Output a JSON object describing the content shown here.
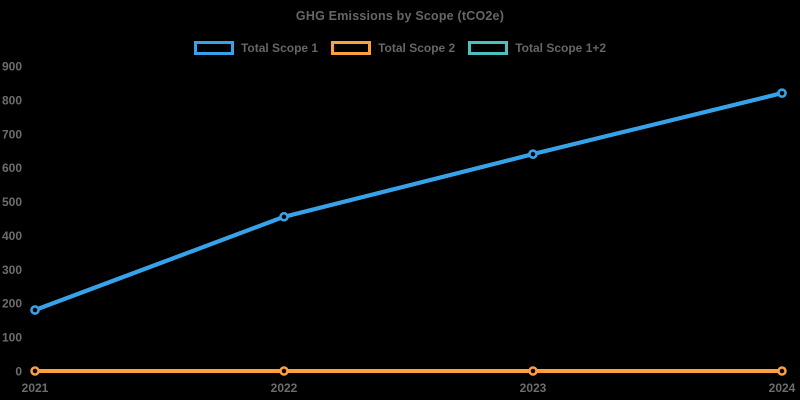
{
  "chart": {
    "title": "GHG Emissions by Scope (tCO2e)",
    "background_color": "#000000",
    "text_color": "#666666",
    "legend": [
      {
        "label": "Total Scope 1",
        "color": "#36A2EB"
      },
      {
        "label": "Total Scope 2",
        "color": "#FF9F40"
      },
      {
        "label": "Total Scope 1+2",
        "color": "#4BC0C0"
      }
    ]
  },
  "chart_data": {
    "type": "line",
    "title": "GHG Emissions by Scope (tCO2e)",
    "x": [
      "2021",
      "2022",
      "2023",
      "2024"
    ],
    "series": [
      {
        "name": "Total Scope 1",
        "color": "#36A2EB",
        "values": [
          180,
          455,
          640,
          820
        ]
      },
      {
        "name": "Total Scope 2",
        "color": "#FF9F40",
        "values": [
          0,
          0,
          0,
          0
        ]
      },
      {
        "name": "Total Scope 1+2",
        "color": "#4BC0C0",
        "values": [
          180,
          455,
          640,
          820
        ]
      }
    ],
    "xlabel": "",
    "ylabel": "",
    "ylim": [
      0,
      900
    ],
    "yticks": [
      0,
      100,
      200,
      300,
      400,
      500,
      600,
      700,
      800,
      900
    ],
    "grid": false,
    "legend_position": "top",
    "notes": "Total Scope 1+2 series coincides with Total Scope 1 (Scope 2 is zero) and is hidden beneath it"
  }
}
